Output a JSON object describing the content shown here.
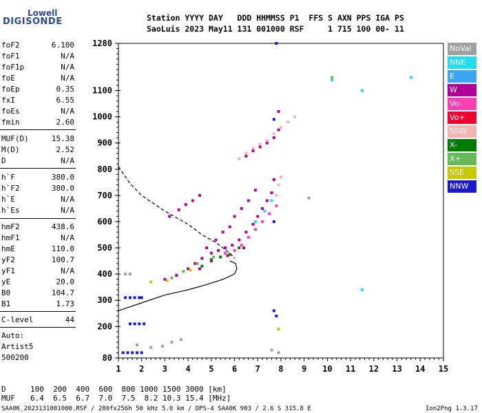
{
  "logo": {
    "line1": "Lowell",
    "line2": "DIGISONDE"
  },
  "header": {
    "row1": "Station YYYY DAY   DDD HHMMSS P1  FFS S AXN PPS IGA PS",
    "row2": "SaoLuis 2023 May11 131 001000 RSF     1 715 100 00- 11"
  },
  "params": [
    {
      "key": "foF2",
      "value": "6.100"
    },
    {
      "key": "foF1",
      "value": "N/A"
    },
    {
      "key": "foF1p",
      "value": "N/A"
    },
    {
      "key": "foE",
      "value": "N/A"
    },
    {
      "key": "foEp",
      "value": "0.35"
    },
    {
      "key": "fxI",
      "value": "6.55"
    },
    {
      "key": "foEs",
      "value": "N/A"
    },
    {
      "key": "fmin",
      "value": "2.60"
    },
    {
      "key": "MUF(D)",
      "value": "15.38"
    },
    {
      "key": "M(D)",
      "value": "2.52"
    },
    {
      "key": "D",
      "value": "N/A"
    },
    {
      "key": "h`F",
      "value": "380.0"
    },
    {
      "key": "h`F2",
      "value": "380.0"
    },
    {
      "key": "h`E",
      "value": "N/A"
    },
    {
      "key": "h`Es",
      "value": "N/A"
    },
    {
      "key": "hmF2",
      "value": "438.6"
    },
    {
      "key": "hmF1",
      "value": "N/A"
    },
    {
      "key": "hmE",
      "value": "110.0"
    },
    {
      "key": "yF2",
      "value": "100.7"
    },
    {
      "key": "yF1",
      "value": "N/A"
    },
    {
      "key": "yE",
      "value": "20.0"
    },
    {
      "key": "B0",
      "value": "104.7"
    },
    {
      "key": "B1",
      "value": "1.73"
    },
    {
      "key": "C-level",
      "value": "44"
    }
  ],
  "auto": {
    "line1": "Auto:",
    "line2": "Artist5",
    "line3": "500200"
  },
  "legend": [
    {
      "label": "NoVal",
      "color": "#a0a0a0"
    },
    {
      "label": "NNE",
      "color": "#22ddee"
    },
    {
      "label": "E",
      "color": "#3aa6f0"
    },
    {
      "label": "W",
      "color": "#b00098"
    },
    {
      "label": "Vo-",
      "color": "#ff3eb0"
    },
    {
      "label": "Vo+",
      "color": "#ee0030"
    },
    {
      "label": "SSW",
      "color": "#f4b4b4"
    },
    {
      "label": "X-",
      "color": "#007a00"
    },
    {
      "label": "X+",
      "color": "#66b85a"
    },
    {
      "label": "SSE",
      "color": "#c8c800"
    },
    {
      "label": "NNW",
      "color": "#1a1acc"
    }
  ],
  "bottom": {
    "d_label": "D",
    "d_values": "100  200  400  600  800 1000 1500 3000 [km]",
    "muf_label": "MUF",
    "muf_values": "6.4  6.5  6.7  7.0  7.5  8.2 10.3 15.4 [MHz]"
  },
  "footer": {
    "left": "SAA0K_2023131001000.RSF / 280fx256h 50 kHz 5.0 km / DPS-4 SAA0K 903 / 2.6 S 315.8 E",
    "right": "Ion2Png 1.3.17"
  },
  "chart_data": {
    "type": "scatter",
    "xlim": [
      1,
      15
    ],
    "ylim": [
      80,
      1280
    ],
    "x_ticks": [
      1,
      2,
      3,
      4,
      5,
      6,
      7,
      8,
      9,
      10,
      11,
      12,
      13,
      14,
      15
    ],
    "y_ticks": [
      80,
      200,
      300,
      400,
      500,
      600,
      700,
      800,
      900,
      1000,
      1100,
      1280
    ],
    "grid": false,
    "series": [
      {
        "name": "W",
        "color": "#b00098",
        "points": [
          [
            3.0,
            380
          ],
          [
            3.5,
            395
          ],
          [
            4.0,
            420
          ],
          [
            4.3,
            440
          ],
          [
            4.6,
            460
          ],
          [
            5.0,
            480
          ],
          [
            5.3,
            490
          ],
          [
            5.6,
            500
          ],
          [
            5.9,
            510
          ],
          [
            6.2,
            530
          ],
          [
            6.5,
            560
          ],
          [
            6.8,
            590
          ],
          [
            7.0,
            620
          ],
          [
            7.2,
            650
          ],
          [
            7.4,
            680
          ],
          [
            7.6,
            710
          ],
          [
            4.8,
            500
          ],
          [
            5.2,
            530
          ],
          [
            5.5,
            560
          ],
          [
            5.8,
            580
          ],
          [
            6.0,
            620
          ],
          [
            6.3,
            650
          ],
          [
            6.6,
            680
          ],
          [
            6.9,
            720
          ],
          [
            5.0,
            450
          ],
          [
            5.7,
            470
          ],
          [
            6.4,
            500
          ],
          [
            4.5,
            420
          ],
          [
            7.7,
            760
          ],
          [
            3.2,
            620
          ],
          [
            3.6,
            645
          ],
          [
            3.9,
            665
          ],
          [
            4.2,
            680
          ],
          [
            4.5,
            700
          ],
          [
            6.5,
            850
          ],
          [
            6.8,
            870
          ],
          [
            7.1,
            885
          ],
          [
            7.4,
            900
          ],
          [
            7.7,
            920
          ],
          [
            7.9,
            950
          ],
          [
            7.9,
            1020
          ]
        ]
      },
      {
        "name": "Vo-",
        "color": "#ff3eb0",
        "points": [
          [
            6.0,
            490
          ],
          [
            6.3,
            510
          ],
          [
            6.6,
            540
          ],
          [
            6.9,
            570
          ],
          [
            7.2,
            600
          ],
          [
            7.5,
            630
          ],
          [
            7.8,
            660
          ],
          [
            5.6,
            480
          ]
        ]
      },
      {
        "name": "SSW",
        "color": "#f4b4b4",
        "points": [
          [
            6.2,
            840
          ],
          [
            6.5,
            860
          ],
          [
            6.8,
            880
          ],
          [
            7.1,
            895
          ],
          [
            7.4,
            910
          ],
          [
            7.7,
            935
          ],
          [
            8.0,
            960
          ],
          [
            8.3,
            980
          ],
          [
            8.6,
            1000
          ],
          [
            7.8,
            700
          ],
          [
            7.9,
            740
          ],
          [
            8.0,
            770
          ]
        ]
      },
      {
        "name": "NNE",
        "color": "#22ddee",
        "points": [
          [
            6.9,
            600
          ],
          [
            7.3,
            640
          ],
          [
            7.6,
            680
          ],
          [
            10.2,
            1140
          ],
          [
            11.5,
            1100
          ],
          [
            11.5,
            340
          ],
          [
            13.6,
            1150
          ]
        ]
      },
      {
        "name": "X-",
        "color": "#007a00",
        "points": [
          [
            5.0,
            455
          ],
          [
            5.4,
            465
          ],
          [
            5.8,
            475
          ],
          [
            4.6,
            430
          ],
          [
            6.2,
            500
          ]
        ]
      },
      {
        "name": "X+",
        "color": "#66b85a",
        "points": [
          [
            3.3,
            385
          ],
          [
            3.8,
            410
          ],
          [
            4.4,
            440
          ],
          [
            5.1,
            465
          ],
          [
            10.2,
            1150
          ]
        ]
      },
      {
        "name": "SSE",
        "color": "#c8c800",
        "points": [
          [
            2.4,
            370
          ],
          [
            3.1,
            375
          ],
          [
            4.1,
            415
          ],
          [
            7.9,
            190
          ]
        ]
      },
      {
        "name": "NNW",
        "color": "#1a1acc",
        "points": [
          [
            1.3,
            310
          ],
          [
            1.5,
            310
          ],
          [
            1.7,
            310
          ],
          [
            1.9,
            310
          ],
          [
            2.0,
            310
          ],
          [
            1.5,
            210
          ],
          [
            1.7,
            210
          ],
          [
            1.9,
            210
          ],
          [
            2.1,
            210
          ],
          [
            1.2,
            100
          ],
          [
            1.4,
            100
          ],
          [
            1.6,
            100
          ],
          [
            1.8,
            100
          ],
          [
            2.0,
            100
          ],
          [
            7.7,
            260
          ],
          [
            7.8,
            240
          ],
          [
            7.7,
            600
          ],
          [
            7.8,
            1280
          ],
          [
            7.7,
            990
          ]
        ]
      },
      {
        "name": "NoVal",
        "color": "#a0a0a0",
        "points": [
          [
            1.3,
            400
          ],
          [
            1.5,
            400
          ],
          [
            1.8,
            130
          ],
          [
            2.4,
            120
          ],
          [
            2.9,
            125
          ],
          [
            3.3,
            140
          ],
          [
            3.7,
            150
          ],
          [
            7.9,
            100
          ],
          [
            7.6,
            110
          ],
          [
            9.2,
            690
          ]
        ]
      }
    ],
    "profile_solid": [
      [
        1.0,
        260
      ],
      [
        2.0,
        290
      ],
      [
        3.0,
        320
      ],
      [
        4.0,
        340
      ],
      [
        4.8,
        360
      ],
      [
        5.5,
        380
      ],
      [
        6.0,
        400
      ],
      [
        6.1,
        420
      ],
      [
        6.05,
        440
      ],
      [
        5.8,
        450
      ]
    ],
    "profile_dashed": [
      [
        1.0,
        810
      ],
      [
        1.5,
        745
      ],
      [
        2.0,
        700
      ],
      [
        3.0,
        640
      ],
      [
        4.0,
        590
      ],
      [
        4.6,
        550
      ],
      [
        5.2,
        520
      ],
      [
        5.8,
        480
      ],
      [
        6.0,
        460
      ]
    ]
  }
}
